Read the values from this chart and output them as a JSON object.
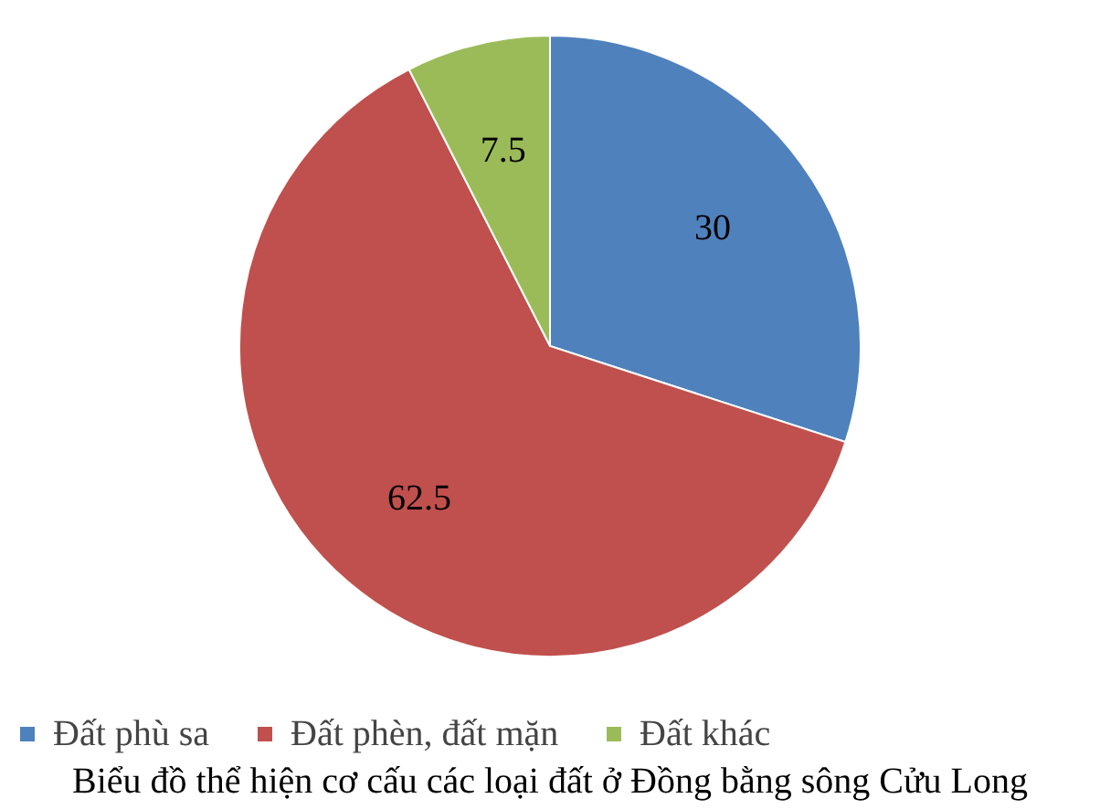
{
  "chart_data": {
    "type": "pie",
    "title": "Biểu đồ thể hiện cơ cấu các loại đất ở Đồng bằng sông Cửu Long",
    "categories": [
      "Đất phù sa",
      "Đất phèn, đất mặn",
      "Đất khác"
    ],
    "values": [
      30,
      62.5,
      7.5
    ],
    "colors": [
      "#4f81bd",
      "#c0504d",
      "#9bbb59"
    ],
    "data_labels": true,
    "legend": "bottom"
  }
}
